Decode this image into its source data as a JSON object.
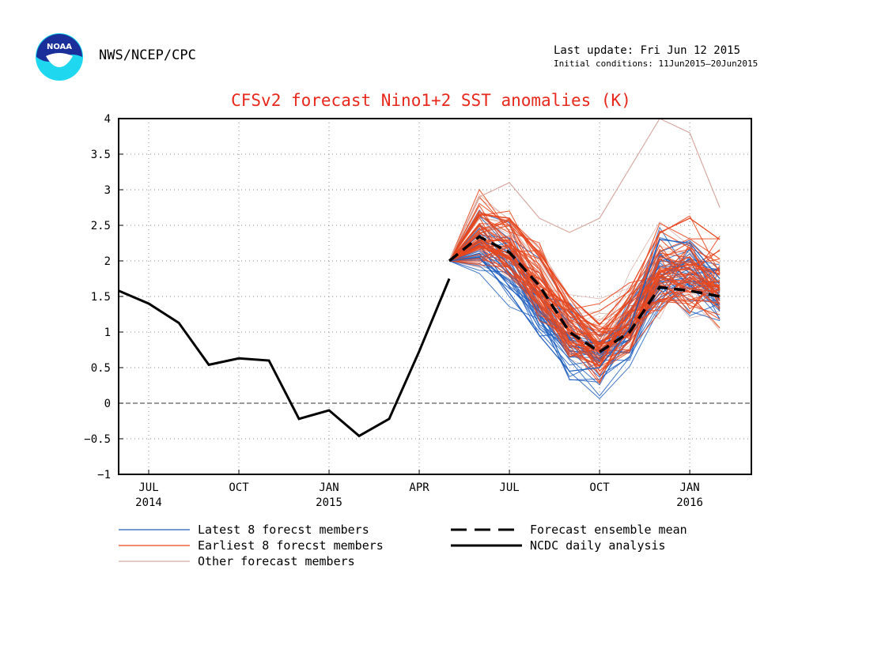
{
  "header": {
    "agency": "NWS/NCEP/CPC",
    "last_update": "Last update: Fri Jun 12 2015",
    "initial_conditions": "Initial conditions: 11Jun2015–20Jun2015",
    "logo_text": "NOAA"
  },
  "colors": {
    "title": "#e8281c",
    "latest": "#1f5fbf",
    "earliest": "#e8461c",
    "other": "#d8a8a0",
    "mean": "#000000",
    "analysis": "#000000"
  },
  "chart_data": {
    "type": "line",
    "title": "CFSv2 forecast Nino1+2 SST anomalies (K)",
    "xlabel": "",
    "ylabel": "",
    "ylim": [
      -1,
      4
    ],
    "y_ticks": [
      "4",
      "3.5",
      "3",
      "2.5",
      "2",
      "1.5",
      "1",
      "0.5",
      "0",
      "−0.5",
      "−1"
    ],
    "x_ticks": [
      {
        "label": "JUL",
        "year": "2014",
        "x": 1
      },
      {
        "label": "OCT",
        "year": "",
        "x": 4
      },
      {
        "label": "JAN",
        "year": "2015",
        "x": 7
      },
      {
        "label": "APR",
        "year": "",
        "x": 10
      },
      {
        "label": "JUL",
        "year": "",
        "x": 13
      },
      {
        "label": "OCT",
        "year": "",
        "x": 16
      },
      {
        "label": "JAN",
        "year": "2016",
        "x": 19
      }
    ],
    "x_range": [
      0,
      21
    ],
    "grid": true,
    "legend_position": "bottom",
    "series": [
      {
        "name": "NCDC daily analysis",
        "style": "solid-thick",
        "x": [
          0,
          1,
          2,
          3,
          4,
          5,
          6,
          7,
          8,
          9,
          10,
          11
        ],
        "values": [
          1.58,
          1.4,
          1.13,
          0.54,
          0.63,
          0.6,
          -0.22,
          -0.1,
          -0.46,
          -0.22,
          0.73,
          1.75
        ]
      },
      {
        "name": "Forecast ensemble mean",
        "style": "dashed-thick",
        "x": [
          11,
          12,
          13,
          14,
          15,
          16,
          17,
          18,
          19,
          20
        ],
        "values": [
          2.0,
          2.34,
          2.12,
          1.65,
          1.0,
          0.72,
          1.0,
          1.63,
          1.58,
          1.5
        ]
      },
      {
        "name": "Latest 8 forecst members",
        "style": "thin",
        "x": [
          11,
          12,
          13,
          14,
          15,
          16,
          17,
          18,
          19,
          20
        ],
        "values": [
          2.0,
          2.05,
          1.55,
          0.95,
          0.45,
          0.5,
          1.05,
          2.3,
          2.25,
          1.75
        ]
      },
      {
        "name": "Earliest 8 forecst members",
        "style": "thin",
        "x": [
          11,
          12,
          13,
          14,
          15,
          16,
          17,
          18,
          19,
          20
        ],
        "values": [
          2.0,
          2.65,
          2.6,
          2.1,
          1.5,
          1.1,
          1.6,
          2.4,
          2.6,
          2.3
        ]
      },
      {
        "name": "Other forecast members",
        "style": "thin",
        "x": [
          11,
          12,
          13,
          14,
          15,
          16,
          17,
          18,
          19,
          20
        ],
        "values": [
          2.0,
          2.9,
          3.1,
          2.6,
          2.4,
          2.6,
          3.3,
          4.0,
          3.8,
          2.75
        ]
      }
    ],
    "legend": [
      {
        "label": "Latest 8 forecst members",
        "style": "thin",
        "color": "#1f5fbf"
      },
      {
        "label": "Earliest 8 forecst members",
        "style": "thin",
        "color": "#e8461c"
      },
      {
        "label": "Other forecast members",
        "style": "thin",
        "color": "#d8a8a0"
      },
      {
        "label": "Forecast ensemble mean",
        "style": "dashed",
        "color": "#000000"
      },
      {
        "label": "NCDC daily analysis",
        "style": "solid",
        "color": "#000000"
      }
    ]
  }
}
